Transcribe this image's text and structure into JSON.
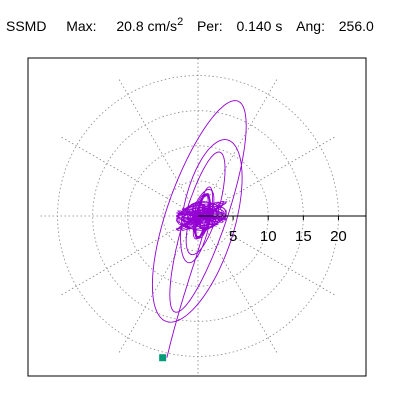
{
  "header": {
    "station": "SSMD",
    "max_label": "Max:",
    "max_value": "20.8 cm/s",
    "max_exp": "2",
    "per_label": "Per:",
    "per_value": "0.140 s",
    "ang_label": "Ang:",
    "ang_value": "256.0"
  },
  "chart_data": {
    "type": "polar-trace",
    "title": "SSMD",
    "max_value": 20.8,
    "max_unit": "cm/s^2",
    "period_s": 0.14,
    "angle_deg": 256.0,
    "radial_ticks": [
      5,
      10,
      15,
      20
    ],
    "radial_tick_labels": [
      "5",
      "10",
      "15",
      "20"
    ],
    "rmax": 22.5,
    "grid": true,
    "grid_style": "dotted",
    "spoke_angles_deg": [
      0,
      30,
      60,
      90,
      120,
      150,
      180,
      210,
      240,
      270,
      300,
      330
    ],
    "colors": {
      "trace": "#9400d3",
      "marker": "#009b77",
      "grid": "#888888"
    },
    "peak_marker": {
      "angle_deg": 256.0,
      "r": 20.8
    }
  }
}
